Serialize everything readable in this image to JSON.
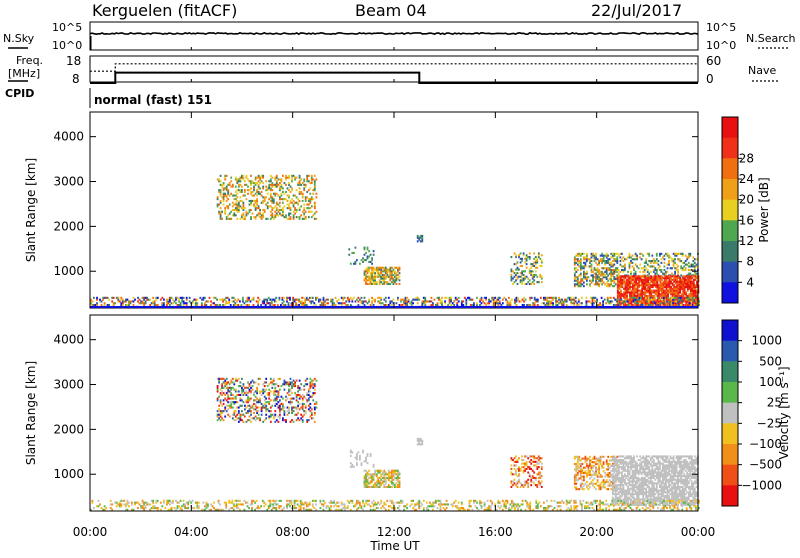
{
  "header": {
    "station": "Kerguelen (fitACF)",
    "beam": "Beam 04",
    "date": "22/Jul/2017"
  },
  "nsky_panel": {
    "left_label": "N.Sky",
    "right_label": "N.Search",
    "left_ticks": [
      "10^5",
      "10^0"
    ],
    "right_ticks": [
      "10^5",
      "10^0"
    ]
  },
  "freq_panel": {
    "left_label_1": "Freq.",
    "left_label_2": "[MHz]",
    "right_label": "Nave",
    "left_ticks": [
      "18",
      "8"
    ],
    "right_ticks": [
      "60",
      "0"
    ],
    "freq_steps": [
      {
        "time_h": 0.0,
        "value": 8
      },
      {
        "time_h": 1.0,
        "value": 12
      },
      {
        "time_h": 13.0,
        "value": 8
      },
      {
        "time_h": 24.0,
        "value": 8
      }
    ],
    "nave_steps": [
      {
        "time_h": 0.0,
        "value": 25
      },
      {
        "time_h": 1.0,
        "value": 42
      },
      {
        "time_h": 13.0,
        "value": 42
      },
      {
        "time_h": 24.0,
        "value": 42
      }
    ]
  },
  "cpid": {
    "label": "CPID",
    "mode": "normal (fast) 151"
  },
  "time_axis": {
    "label": "Time UT",
    "ticks": [
      "00:00",
      "04:00",
      "08:00",
      "12:00",
      "16:00",
      "20:00",
      "00:00"
    ]
  },
  "chart_data": [
    {
      "type": "heatmap",
      "name": "power",
      "ylabel": "Slant Range [km]",
      "yticks": [
        "1000",
        "2000",
        "3000",
        "4000"
      ],
      "ylim": [
        180,
        4550
      ],
      "xlim": [
        0,
        24
      ],
      "colorbar_label": "Power [dB]",
      "colorbar_ticks": [
        "4",
        "8",
        "12",
        "16",
        "20",
        "24",
        "28"
      ],
      "colorbar_colors": [
        "#1010e0",
        "#2a4fb0",
        "#3a7a6a",
        "#4fa84f",
        "#e8d020",
        "#f0a018",
        "#f07010",
        "#f03018",
        "#e81010"
      ],
      "regions": [
        {
          "t0": 5.0,
          "t1": 8.9,
          "r0": 2150,
          "r1": 3150,
          "density": 0.35,
          "level": [
            2,
            6
          ]
        },
        {
          "t0": 10.2,
          "t1": 11.2,
          "r0": 1150,
          "r1": 1550,
          "density": 0.2,
          "level": [
            1,
            3
          ]
        },
        {
          "t0": 10.8,
          "t1": 12.2,
          "r0": 700,
          "r1": 1100,
          "density": 0.65,
          "level": [
            2,
            6
          ]
        },
        {
          "t0": 12.9,
          "t1": 13.1,
          "r0": 1650,
          "r1": 1800,
          "density": 0.7,
          "level": [
            1,
            3
          ]
        },
        {
          "t0": 16.6,
          "t1": 17.8,
          "r0": 700,
          "r1": 1400,
          "density": 0.35,
          "level": [
            1,
            5
          ]
        },
        {
          "t0": 19.1,
          "t1": 20.8,
          "r0": 650,
          "r1": 1400,
          "density": 0.5,
          "level": [
            1,
            6
          ]
        },
        {
          "t0": 20.6,
          "t1": 24.0,
          "r0": 850,
          "r1": 1400,
          "density": 0.35,
          "level": [
            1,
            5
          ]
        },
        {
          "t0": 20.8,
          "t1": 24.0,
          "r0": 230,
          "r1": 900,
          "density": 0.85,
          "level": [
            6,
            8
          ]
        },
        {
          "t0": 0.0,
          "t1": 24.0,
          "r0": 190,
          "r1": 420,
          "density": 0.45,
          "level": [
            0,
            7
          ]
        }
      ]
    },
    {
      "type": "heatmap",
      "name": "velocity",
      "ylabel": "Slant Range [km]",
      "yticks": [
        "1000",
        "2000",
        "3000",
        "4000"
      ],
      "ylim": [
        180,
        4550
      ],
      "xlim": [
        0,
        24
      ],
      "colorbar_label": "Velocity [m s⁻¹]",
      "colorbar_ticks": [
        "1000",
        "500",
        "100",
        "25",
        "−25",
        "−100",
        "−500",
        "−1000"
      ],
      "colorbar_colors": [
        "#1010d0",
        "#2a5ab0",
        "#3a8a6a",
        "#5ab84a",
        "#c0c0c0",
        "#f0c020",
        "#f09018",
        "#f05018",
        "#e81010"
      ],
      "regions": [
        {
          "t0": 5.0,
          "t1": 8.9,
          "r0": 2150,
          "r1": 3150,
          "density": 0.35,
          "level": [
            0,
            8
          ]
        },
        {
          "t0": 10.2,
          "t1": 11.2,
          "r0": 1150,
          "r1": 1550,
          "density": 0.2,
          "level": [
            4,
            4
          ]
        },
        {
          "t0": 10.8,
          "t1": 12.2,
          "r0": 700,
          "r1": 1100,
          "density": 0.65,
          "level": [
            3,
            6
          ]
        },
        {
          "t0": 12.9,
          "t1": 13.1,
          "r0": 1650,
          "r1": 1800,
          "density": 0.7,
          "level": [
            4,
            4
          ]
        },
        {
          "t0": 16.6,
          "t1": 17.8,
          "r0": 700,
          "r1": 1400,
          "density": 0.35,
          "level": [
            4,
            8
          ]
        },
        {
          "t0": 19.1,
          "t1": 20.8,
          "r0": 650,
          "r1": 1400,
          "density": 0.5,
          "level": [
            4,
            7
          ]
        },
        {
          "t0": 20.6,
          "t1": 24.0,
          "r0": 300,
          "r1": 1400,
          "density": 0.75,
          "level": [
            4,
            4
          ]
        },
        {
          "t0": 0.0,
          "t1": 24.0,
          "r0": 190,
          "r1": 420,
          "density": 0.35,
          "level": [
            3,
            6
          ]
        }
      ]
    }
  ]
}
